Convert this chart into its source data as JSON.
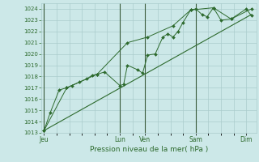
{
  "bg_color": "#cce8e8",
  "grid_color": "#aacccc",
  "line_color": "#2d6a2d",
  "marker_color": "#2d6a2d",
  "xlabel_text": "Pression niveau de la mer( hPa )",
  "ylim": [
    1013,
    1024.5
  ],
  "yticks": [
    1013,
    1014,
    1015,
    1016,
    1017,
    1018,
    1019,
    1020,
    1021,
    1022,
    1023,
    1024
  ],
  "x_day_labels": [
    "Jeu",
    "Lun",
    "Ven",
    "Sam",
    "Dim"
  ],
  "x_day_positions": [
    0.0,
    3.0,
    4.0,
    6.0,
    8.0
  ],
  "xlim": [
    -0.1,
    8.4
  ],
  "series1": [
    [
      0.0,
      1013.2
    ],
    [
      0.25,
      1014.8
    ],
    [
      0.6,
      1016.8
    ],
    [
      0.9,
      1017.0
    ],
    [
      1.1,
      1017.2
    ],
    [
      1.4,
      1017.5
    ],
    [
      1.7,
      1017.8
    ],
    [
      1.9,
      1018.1
    ],
    [
      2.1,
      1018.2
    ],
    [
      2.4,
      1018.4
    ],
    [
      3.0,
      1017.2
    ],
    [
      3.15,
      1017.3
    ],
    [
      3.3,
      1019.0
    ],
    [
      3.7,
      1018.6
    ],
    [
      3.9,
      1018.3
    ],
    [
      4.1,
      1019.9
    ],
    [
      4.4,
      1020.0
    ],
    [
      4.7,
      1021.5
    ],
    [
      4.9,
      1021.8
    ],
    [
      5.1,
      1021.5
    ],
    [
      5.3,
      1022.0
    ],
    [
      5.5,
      1022.8
    ],
    [
      5.8,
      1023.9
    ],
    [
      6.0,
      1024.0
    ],
    [
      6.25,
      1023.5
    ],
    [
      6.45,
      1023.3
    ],
    [
      6.7,
      1024.1
    ],
    [
      7.0,
      1023.0
    ],
    [
      7.4,
      1023.1
    ],
    [
      8.0,
      1024.0
    ],
    [
      8.2,
      1023.4
    ]
  ],
  "series2": [
    [
      0.0,
      1013.2
    ],
    [
      0.9,
      1017.0
    ],
    [
      2.1,
      1018.2
    ],
    [
      3.3,
      1021.0
    ],
    [
      4.1,
      1021.5
    ],
    [
      5.1,
      1022.5
    ],
    [
      5.8,
      1023.9
    ],
    [
      6.7,
      1024.1
    ],
    [
      7.4,
      1023.1
    ],
    [
      8.2,
      1024.0
    ]
  ],
  "series3": [
    [
      0.0,
      1013.2
    ],
    [
      8.2,
      1023.5
    ]
  ],
  "vline_positions": [
    0.0,
    3.0,
    4.0,
    6.0
  ]
}
